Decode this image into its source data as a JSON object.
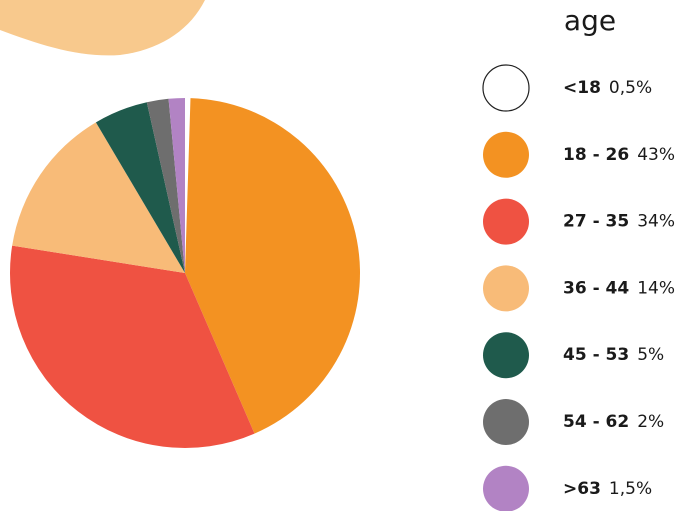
{
  "chart_data": {
    "type": "pie",
    "title": "age",
    "categories": [
      "<18",
      "18 - 26",
      "27 - 35",
      "36 - 44",
      "45 - 53",
      "54 - 62",
      ">63"
    ],
    "values": [
      0.5,
      43,
      34,
      14,
      5,
      2,
      1.5
    ],
    "value_labels": [
      "0,5%",
      "43%",
      "34%",
      "14%",
      "5%",
      "2%",
      "1,5%"
    ],
    "colors": [
      "#ffffff",
      "#f39222",
      "#ef5242",
      "#f8bb78",
      "#1f5a4c",
      "#6e6e6e",
      "#b283c4"
    ]
  }
}
